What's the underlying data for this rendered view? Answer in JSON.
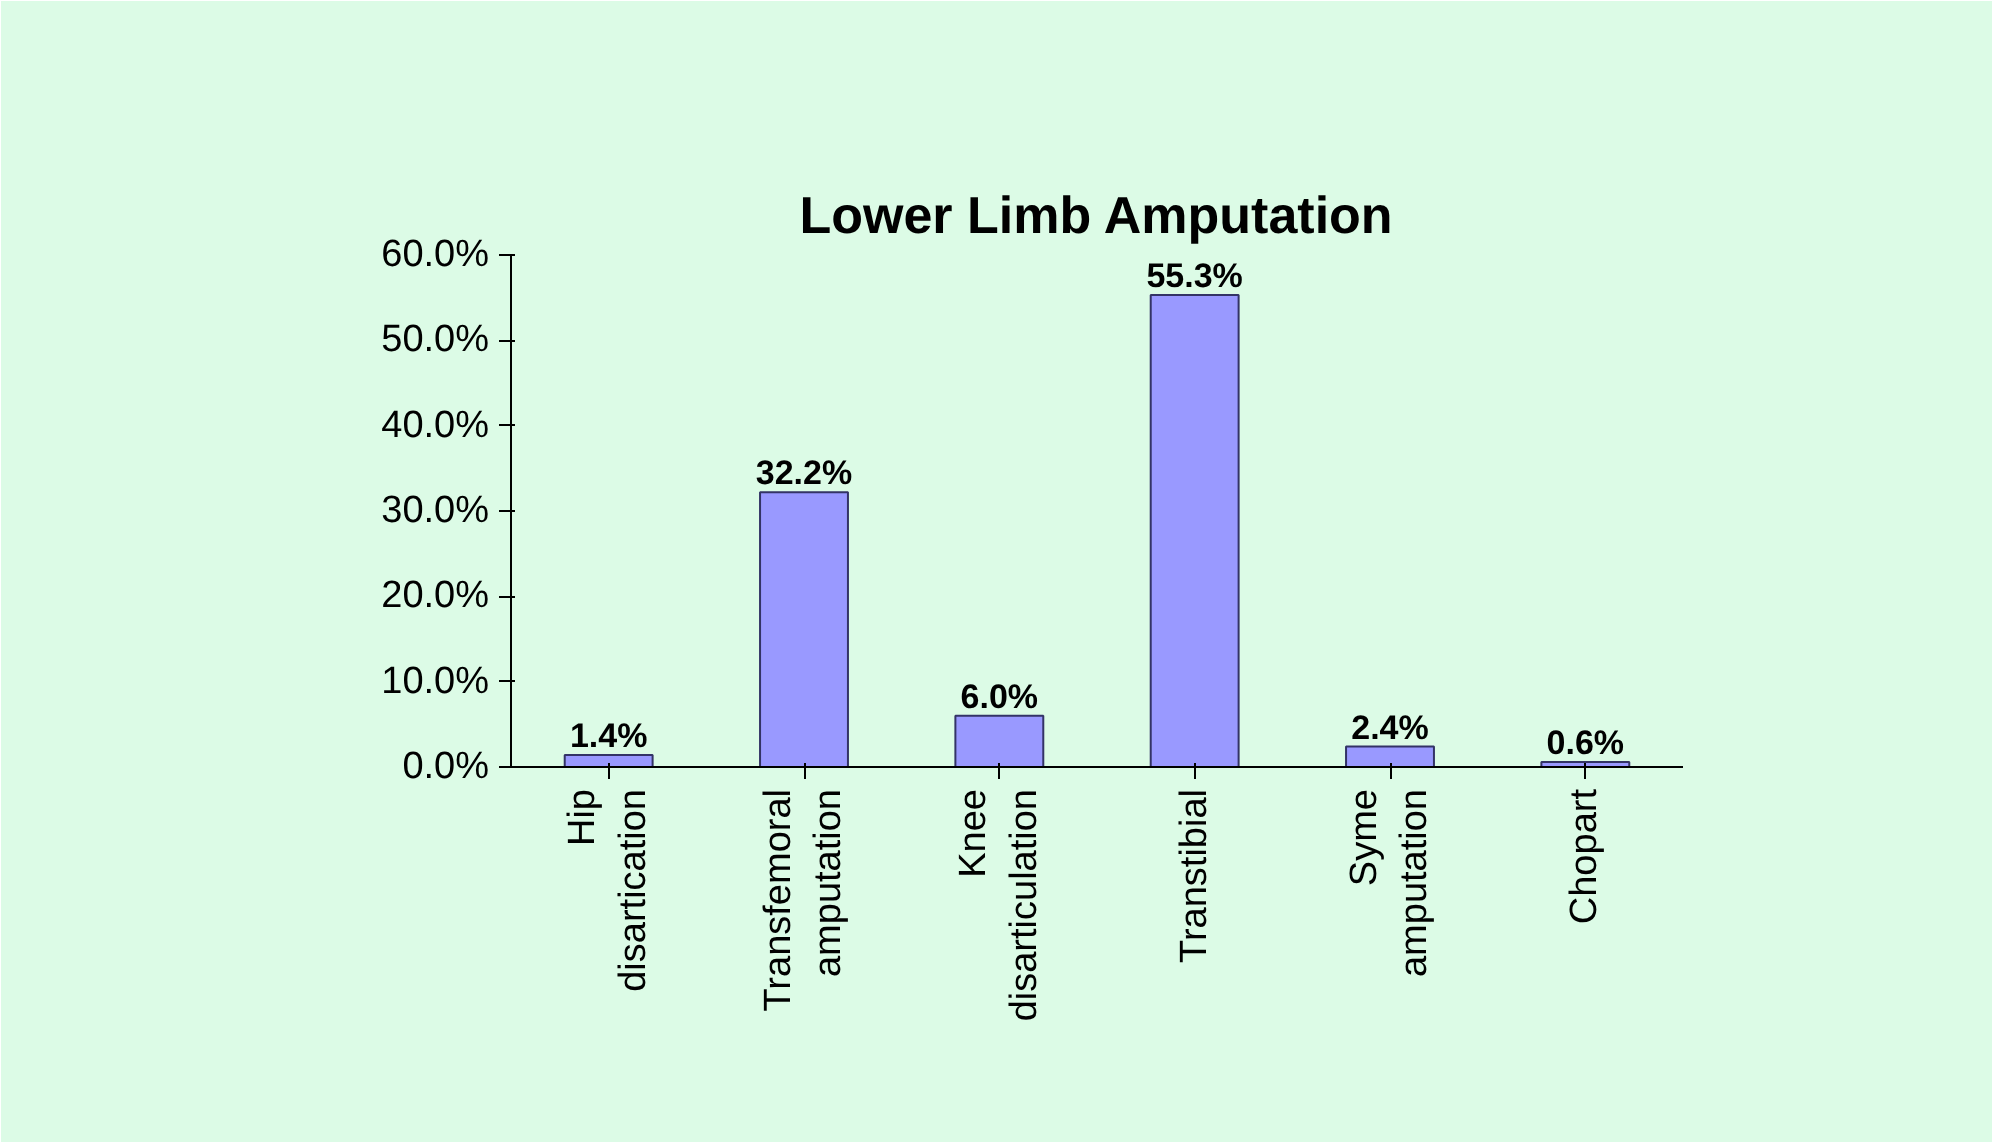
{
  "chart_data": {
    "type": "bar",
    "title": "Lower Limb Amputation",
    "categories": [
      "Hip\ndisartication",
      "Transfemoral\namputation",
      "Knee\ndisarticulation",
      "Transtibial",
      "Syme\namputation",
      "Chopart"
    ],
    "values": [
      1.4,
      32.2,
      6.0,
      55.3,
      2.4,
      0.6
    ],
    "value_labels": [
      "1.4%",
      "32.2%",
      "6.0%",
      "55.3%",
      "2.4%",
      "0.6%"
    ],
    "color": "#9999ff",
    "ylim": [
      0,
      60
    ],
    "yticks": [
      {
        "value": 0,
        "label": "0.0%"
      },
      {
        "value": 10,
        "label": "10.0%"
      },
      {
        "value": 20,
        "label": "20.0%"
      },
      {
        "value": 30,
        "label": "30.0%"
      },
      {
        "value": 40,
        "label": "40.0%"
      },
      {
        "value": 50,
        "label": "50.0%"
      },
      {
        "value": 60,
        "label": "60.0%"
      }
    ],
    "grid": false
  }
}
